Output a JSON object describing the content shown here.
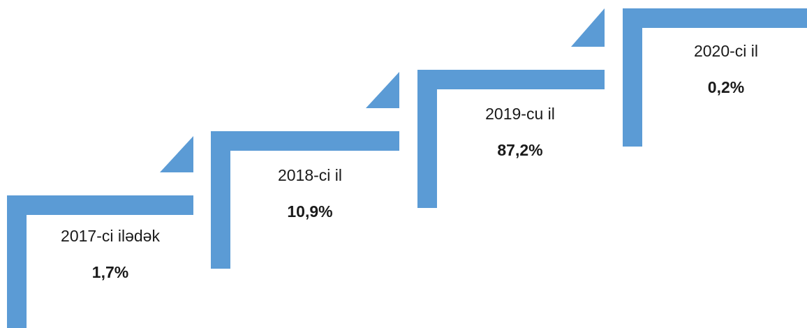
{
  "steps": [
    {
      "label": "2017-ci ilədək",
      "value": "1,7%"
    },
    {
      "label": "2018-ci il",
      "value": "10,9%"
    },
    {
      "label": "2019-cu il",
      "value": "87,2%"
    },
    {
      "label": "2020-ci il",
      "value": "0,2%"
    }
  ]
}
